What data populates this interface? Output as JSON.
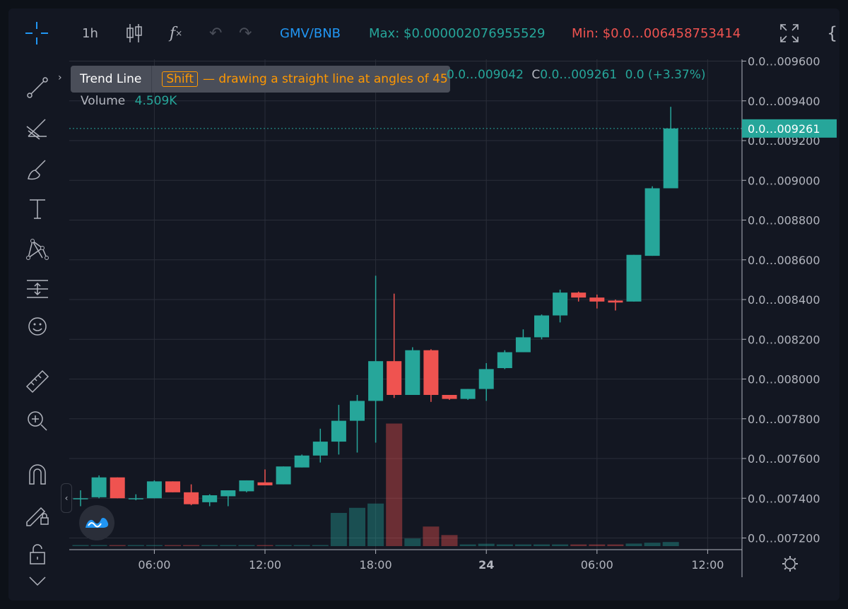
{
  "toolbar": {
    "interval": "1h",
    "symbol": "GMV/BNB",
    "max_label": "Max: $0.000002076955529",
    "min_label": "Min: $0.0…006458753414",
    "icons": [
      "crosshair-icon",
      "candles-icon",
      "indicators-icon",
      "undo-icon",
      "redo-icon",
      "fullscreen-icon",
      "settings-braces-icon"
    ]
  },
  "tools": [
    "trend-line-icon",
    "fib-icon",
    "brush-icon",
    "text-icon",
    "pattern-icon",
    "prediction-icon",
    "emoji-icon",
    "ruler-icon",
    "zoom-in-icon",
    "magnet-icon",
    "lock-drawing-icon",
    "lock-icon",
    "chevron-down-icon"
  ],
  "tooltip": {
    "title": "Trend Line",
    "key": "Shift",
    "hint": "— drawing a straight line at angles of 45"
  },
  "legend": {
    "ohlc_partial": "0.0…009042",
    "close_label": "C",
    "close_value": "0.0…009261",
    "change": "0.0 (+3.37%)",
    "volume_label": "Volume",
    "volume_value": "4.509K"
  },
  "colors": {
    "up": "#26a69a",
    "down": "#ef5350",
    "symbol": "#2196f3",
    "max": "#26a69a",
    "min": "#ef5350",
    "background": "#131722"
  },
  "chart_data": {
    "type": "candlestick",
    "units_note": "price values are the last 4 digits shown on axis (0.0…009261 -> 9261)",
    "y_range": [
      7130,
      9650
    ],
    "y_ticks": [
      9600,
      9400,
      9200,
      9000,
      8800,
      8600,
      8400,
      8200,
      8000,
      7800,
      7600,
      7400,
      7200
    ],
    "y_tick_labels": [
      "0.0…009600",
      "0.0…009400",
      "0.0…009200",
      "0.0…009000",
      "0.0…008800",
      "0.0…008600",
      "0.0…008400",
      "0.0…008200",
      "0.0…008000",
      "0.0…007800",
      "0.0…007600",
      "0.0…007400",
      "0.0…007200"
    ],
    "x_ticks": [
      {
        "label": "06:00",
        "index": 4
      },
      {
        "label": "12:00",
        "index": 10
      },
      {
        "label": "18:00",
        "index": 16
      },
      {
        "label": "24",
        "index": 22
      },
      {
        "label": "06:00",
        "index": 28
      },
      {
        "label": "12:00",
        "index": 34
      }
    ],
    "last_price": 9261,
    "last_price_label": "0.0…009261",
    "candles": [
      {
        "o": 7400,
        "h": 7440,
        "l": 7360,
        "c": 7400
      },
      {
        "o": 7405,
        "h": 7515,
        "l": 7400,
        "c": 7505
      },
      {
        "o": 7505,
        "h": 7505,
        "l": 7400,
        "c": 7400
      },
      {
        "o": 7398,
        "h": 7420,
        "l": 7390,
        "c": 7400
      },
      {
        "o": 7400,
        "h": 7490,
        "l": 7400,
        "c": 7485
      },
      {
        "o": 7485,
        "h": 7485,
        "l": 7430,
        "c": 7430
      },
      {
        "o": 7430,
        "h": 7470,
        "l": 7365,
        "c": 7370
      },
      {
        "o": 7380,
        "h": 7420,
        "l": 7360,
        "c": 7415
      },
      {
        "o": 7410,
        "h": 7440,
        "l": 7360,
        "c": 7440
      },
      {
        "o": 7435,
        "h": 7490,
        "l": 7430,
        "c": 7490
      },
      {
        "o": 7480,
        "h": 7545,
        "l": 7470,
        "c": 7465
      },
      {
        "o": 7470,
        "h": 7560,
        "l": 7470,
        "c": 7560
      },
      {
        "o": 7555,
        "h": 7620,
        "l": 7555,
        "c": 7615
      },
      {
        "o": 7615,
        "h": 7750,
        "l": 7580,
        "c": 7685
      },
      {
        "o": 7685,
        "h": 7870,
        "l": 7620,
        "c": 7790
      },
      {
        "o": 7790,
        "h": 7920,
        "l": 7630,
        "c": 7890
      },
      {
        "o": 7890,
        "h": 8520,
        "l": 7680,
        "c": 8090
      },
      {
        "o": 8090,
        "h": 8430,
        "l": 7905,
        "c": 7920
      },
      {
        "o": 7920,
        "h": 8160,
        "l": 7920,
        "c": 8145
      },
      {
        "o": 8145,
        "h": 8150,
        "l": 7885,
        "c": 7920
      },
      {
        "o": 7920,
        "h": 7920,
        "l": 7895,
        "c": 7900
      },
      {
        "o": 7900,
        "h": 7950,
        "l": 7895,
        "c": 7950
      },
      {
        "o": 7950,
        "h": 8080,
        "l": 7890,
        "c": 8050
      },
      {
        "o": 8055,
        "h": 8145,
        "l": 8050,
        "c": 8135
      },
      {
        "o": 8135,
        "h": 8250,
        "l": 8135,
        "c": 8210
      },
      {
        "o": 8210,
        "h": 8325,
        "l": 8200,
        "c": 8320
      },
      {
        "o": 8320,
        "h": 8450,
        "l": 8285,
        "c": 8435
      },
      {
        "o": 8435,
        "h": 8440,
        "l": 8390,
        "c": 8410
      },
      {
        "o": 8410,
        "h": 8425,
        "l": 8355,
        "c": 8390
      },
      {
        "o": 8395,
        "h": 8400,
        "l": 8345,
        "c": 8385
      },
      {
        "o": 8390,
        "h": 8625,
        "l": 8390,
        "c": 8625
      },
      {
        "o": 8620,
        "h": 8970,
        "l": 8620,
        "c": 8960
      },
      {
        "o": 8960,
        "h": 9370,
        "l": 8960,
        "c": 9261
      }
    ],
    "volume": [
      0.4,
      0.5,
      0.3,
      0.3,
      0.4,
      0.3,
      0.3,
      0.3,
      0.3,
      0.3,
      0.3,
      0.3,
      0.3,
      0.3,
      19.5,
      22.5,
      25.0,
      72.0,
      4.5,
      11.5,
      6.5,
      1.0,
      1.4,
      1.0,
      1.0,
      1.0,
      1.0,
      1.0,
      1.0,
      1.0,
      1.5,
      2.0,
      2.4
    ],
    "volume_max": 100
  }
}
